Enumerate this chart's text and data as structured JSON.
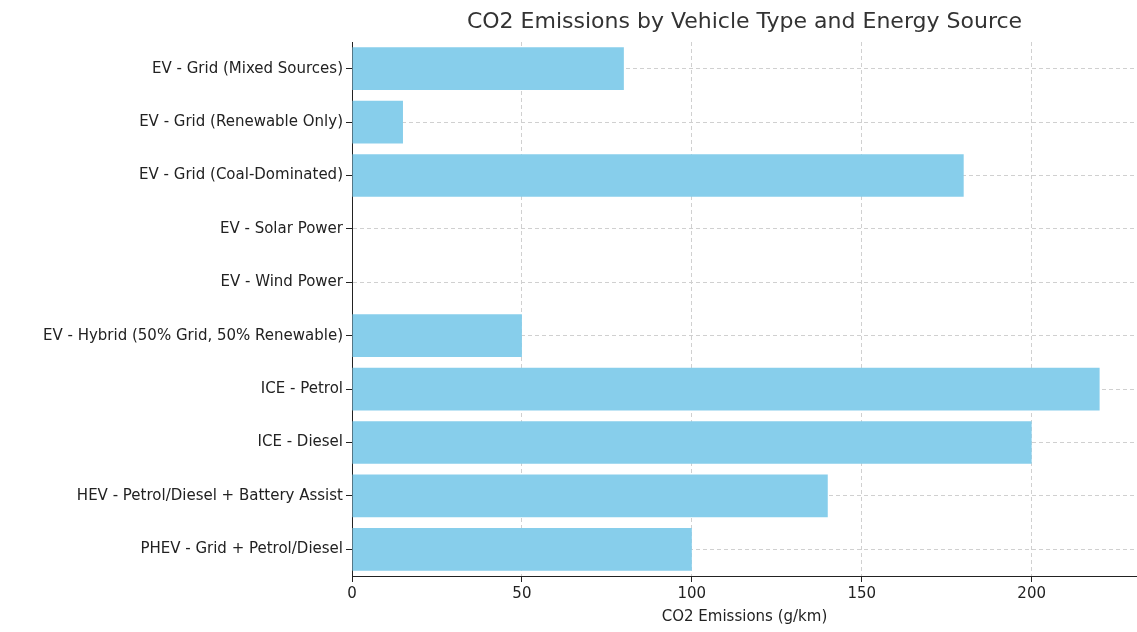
{
  "chart_data": {
    "type": "bar",
    "orientation": "horizontal",
    "title": "CO2 Emissions by Vehicle Type and Energy Source",
    "xlabel": "CO2 Emissions (g/km)",
    "categories": [
      "EV - Grid (Mixed Sources)",
      "EV - Grid (Renewable Only)",
      "EV - Grid (Coal-Dominated)",
      "EV - Solar Power",
      "EV - Wind Power",
      "EV - Hybrid (50% Grid, 50% Renewable)",
      "ICE - Petrol",
      "ICE - Diesel",
      "HEV - Petrol/Diesel + Battery Assist",
      "PHEV - Grid + Petrol/Diesel"
    ],
    "values": [
      80,
      15,
      180,
      0,
      0,
      50,
      220,
      200,
      140,
      100
    ],
    "color": "#87ceeb",
    "xlim": [
      0,
      231
    ],
    "xticks": [
      0,
      50,
      100,
      150,
      200
    ],
    "grid": true,
    "legend": false
  }
}
